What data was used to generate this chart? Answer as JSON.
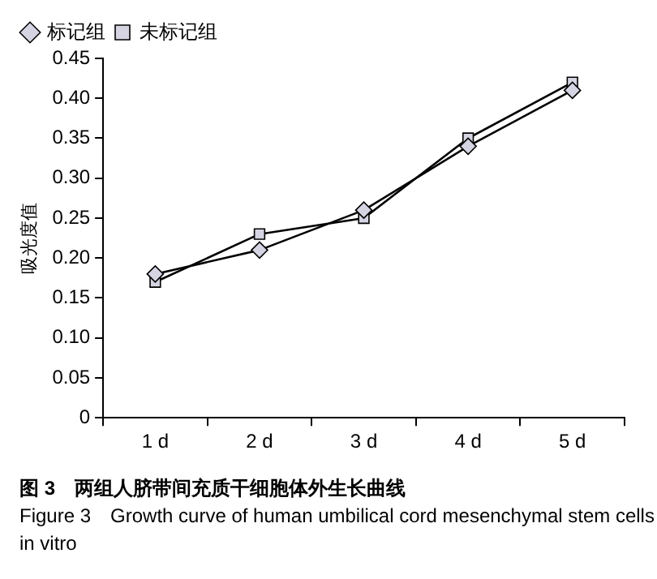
{
  "chart_data": {
    "type": "line",
    "ylabel": "吸光度值",
    "categories": [
      "1 d",
      "2 d",
      "3 d",
      "4 d",
      "5 d"
    ],
    "series": [
      {
        "name": "标记组",
        "color": "#000000",
        "marker": "diamond",
        "values": [
          0.18,
          0.21,
          0.26,
          0.34,
          0.41
        ]
      },
      {
        "name": "未标记组",
        "color": "#000000",
        "marker": "square",
        "values": [
          0.17,
          0.23,
          0.25,
          0.35,
          0.42
        ]
      }
    ],
    "ylim": [
      0,
      0.45
    ],
    "yticks": [
      0,
      {
        "value": 0.05,
        "label": "0.05"
      },
      {
        "value": 0.1,
        "label": "0.10"
      },
      {
        "value": 0.15,
        "label": "0.15"
      },
      {
        "value": 0.2,
        "label": "0.20"
      },
      {
        "value": 0.25,
        "label": "0.25"
      },
      {
        "value": 0.3,
        "label": "0.30"
      },
      {
        "value": 0.35,
        "label": "0.35"
      },
      {
        "value": 0.4,
        "label": "0.40"
      },
      {
        "value": 0.45,
        "label": "0.45"
      }
    ],
    "grid": false,
    "legend": "top left",
    "line_style": "solid",
    "annotations": [
      "图 3　两组人脐带间充质干细胞体外生长曲线",
      "Figure 3　Growth curve of human umbilical cord mesenchymal stem cells in vitro"
    ]
  }
}
